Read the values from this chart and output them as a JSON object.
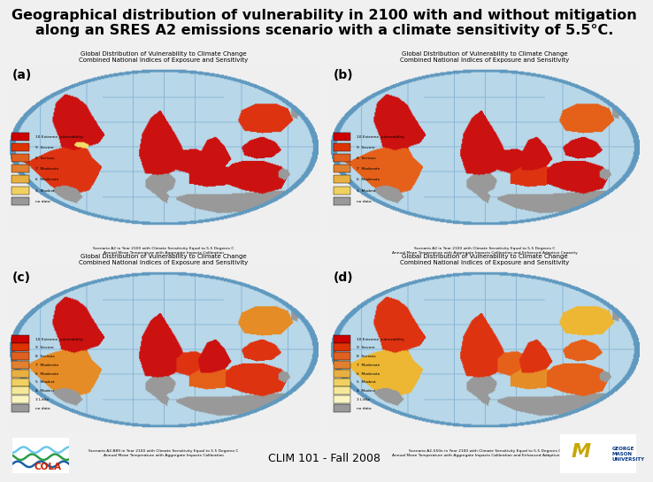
{
  "title_line1": "Geographical distribution of vulnerability in 2100 with and without mitigation",
  "title_line2": "along an SRES A2 emissions scenario with a climate sensitivity of 5.5°C.",
  "title_fontsize": 11.5,
  "background_color": "#f0f0f0",
  "footer_text": "CLIM 101 - Fall 2008",
  "footer_fontsize": 9,
  "panel_labels": [
    "(a)",
    "(b)",
    "(c)",
    "(d)"
  ],
  "panel_label_fontsize": 10,
  "map_titles": [
    "Global Distribution of Vulnerability to Climate Change\nCombined National Indices of Exposure and Sensitivity",
    "Global Distribution of Vulnerability to Climate Change\nCombined National Indices of Exposure and Sensitivity",
    "Global Distribution of Vulnerability to Climate Change\nCombined National Indices of Exposure and Sensitivity",
    "Global Distribution of Vulnerability to Climate Change\nCombined National Indices of Exposure and Sensitivity"
  ],
  "map_captions": [
    "Scenario A2 in Year 2100 with Climate Sensitivity Equal to 5.5 Degrees C\nAnnual Mean Temperature with Aggregate Impacts Calibration",
    "Scenario A2 in Year 2100 with Climate Sensitivity Equal to 5.5 Degrees C\nAnnual Mean Temperature with Aggregate Impacts Calibration and Enhanced Adaptive Capacity",
    "Scenario A2-B89 in Year 2100 with Climate Sensitivity Equal to 5.5 Degrees C\nAnnual Mean Temperature with Aggregate Impacts Calibration",
    "Scenario A2-550e in Year 2100 with Climate Sensitivity Equal to 5.5 Degrees C\nAnnual Mean Temperature with Aggregate Impacts Calibration and Enhanced Adaptive Capacity"
  ],
  "map_bg_color": "#b8d8e8",
  "ocean_color": "#b8d8e8",
  "grid_line_color": "#8ab0c8",
  "map_border_color": "#6090b0",
  "panel_bg": "#ffffff",
  "legend_items_ab": [
    {
      "label": "10 Extreme vulnerability",
      "color": "#cc0000"
    },
    {
      "label": "9  Severe",
      "color": "#dd3300"
    },
    {
      "label": "8  Serious",
      "color": "#e06020"
    },
    {
      "label": "7  Moderate",
      "color": "#e08030"
    },
    {
      "label": "6  Moderate",
      "color": "#e8b040"
    },
    {
      "label": "5  Modest",
      "color": "#f0d060"
    },
    {
      "label": "no data",
      "color": "#999999"
    }
  ],
  "legend_items_cd": [
    {
      "label": "10 Extreme vulnerability",
      "color": "#cc0000"
    },
    {
      "label": "9  Severe",
      "color": "#dd3300"
    },
    {
      "label": "8  Serious",
      "color": "#e06020"
    },
    {
      "label": "7  Moderate",
      "color": "#e08030"
    },
    {
      "label": "6  Moderate",
      "color": "#e8b040"
    },
    {
      "label": "5  Modest",
      "color": "#f0d060"
    },
    {
      "label": "4  Modest",
      "color": "#f5e898"
    },
    {
      "label": "3 Little",
      "color": "#faf4c0"
    },
    {
      "label": "no data",
      "color": "#999999"
    }
  ]
}
